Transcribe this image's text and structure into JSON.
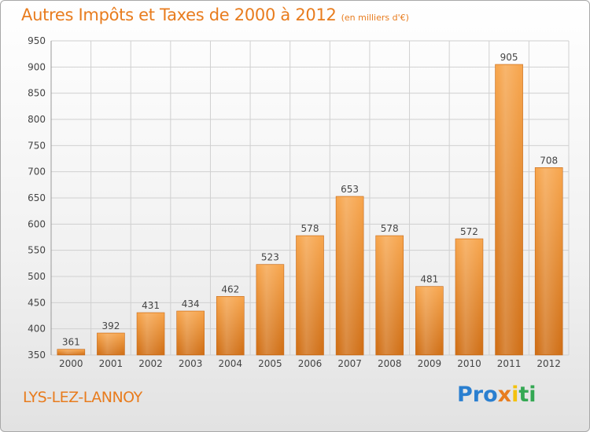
{
  "header": {
    "title": "Autres Impôts et Taxes de 2000 à 2012",
    "unit": "(en milliers d'€)"
  },
  "footer": {
    "commune": "LYS-LEZ-LANNOY",
    "logo": "Proxiti"
  },
  "colors": {
    "accent": "#e87c1e",
    "bar_top": "#f7a64e",
    "bar_bottom": "#d06f16",
    "grid": "#d0d0d0"
  },
  "chart_data": {
    "type": "bar",
    "title": "Autres Impôts et Taxes de 2000 à 2012",
    "subtitle": "(en milliers d'€)",
    "xlabel": "",
    "ylabel": "",
    "categories": [
      "2000",
      "2001",
      "2002",
      "2003",
      "2004",
      "2005",
      "2006",
      "2007",
      "2008",
      "2009",
      "2010",
      "2011",
      "2012"
    ],
    "values": [
      361,
      392,
      431,
      434,
      462,
      523,
      578,
      653,
      578,
      481,
      572,
      905,
      708
    ],
    "ylim": [
      350,
      950
    ],
    "yticks": [
      350,
      400,
      450,
      500,
      550,
      600,
      650,
      700,
      750,
      800,
      850,
      900,
      950
    ],
    "grid": true,
    "data_labels": true
  }
}
